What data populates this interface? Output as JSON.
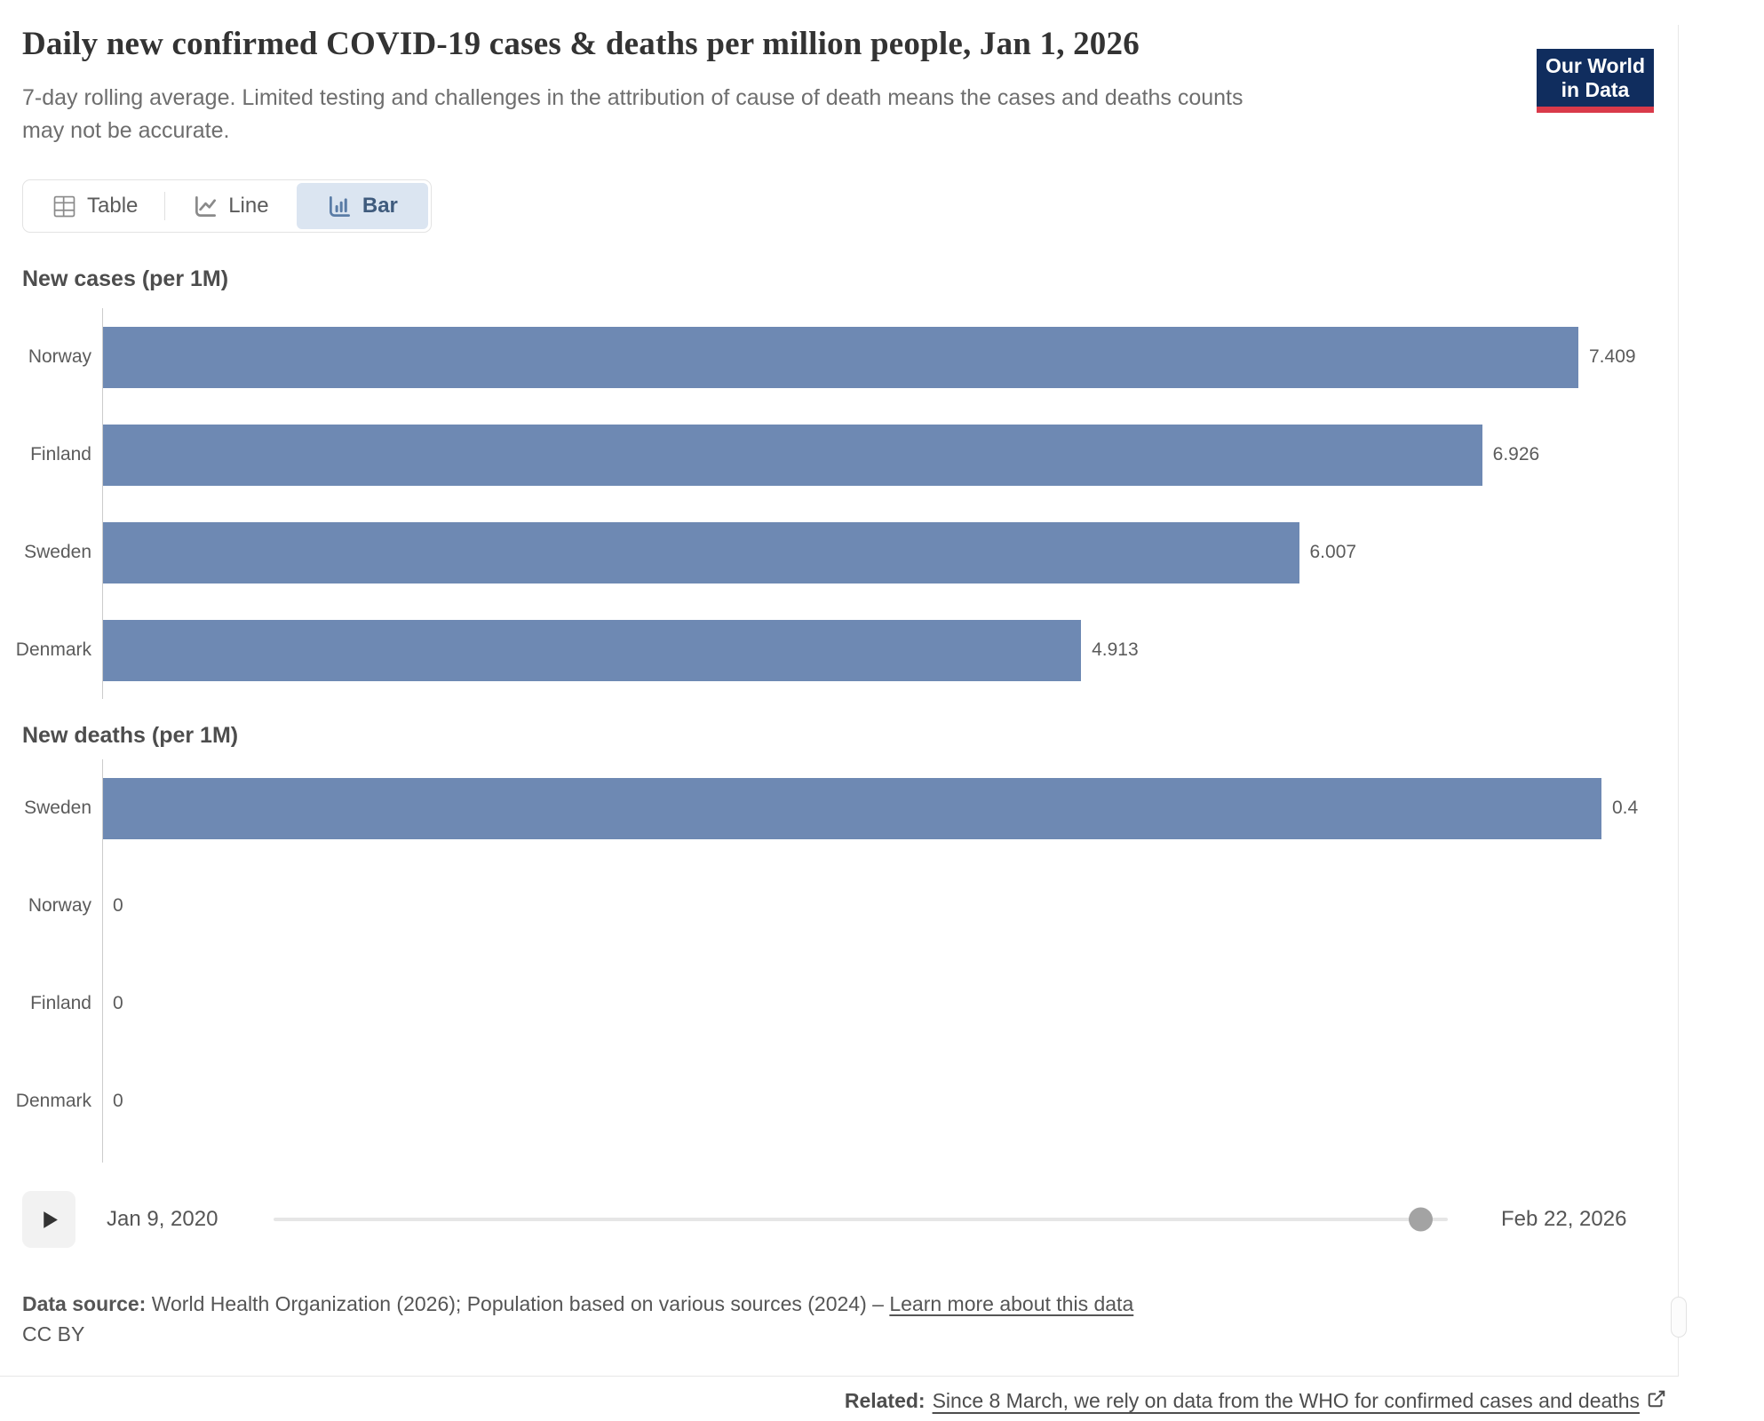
{
  "header": {
    "title": "Daily new confirmed COVID-19 cases & deaths per million people, Jan 1, 2026",
    "subtitle": "7-day rolling average. Limited testing and challenges in the attribution of cause of death means the cases and deaths counts may not be accurate.",
    "logo": {
      "line1": "Our World",
      "line2": "in Data"
    }
  },
  "tabs": [
    {
      "label": "Table",
      "icon": "table-icon",
      "active": false
    },
    {
      "label": "Line",
      "icon": "line-chart-icon",
      "active": false
    },
    {
      "label": "Bar",
      "icon": "bar-chart-icon",
      "active": true
    }
  ],
  "chart_data": [
    {
      "type": "bar",
      "orientation": "horizontal",
      "title": "New cases (per 1M)",
      "categories": [
        "Norway",
        "Finland",
        "Sweden",
        "Denmark"
      ],
      "values": [
        7.409,
        6.926,
        6.007,
        4.913
      ],
      "value_labels": [
        "7.409",
        "6.926",
        "6.007",
        "4.913"
      ],
      "bar_color": "#6e89b3",
      "xlim": [
        0,
        7.409
      ],
      "grid": false,
      "note": "values displayed with dot as thousands separator (cases per million)"
    },
    {
      "type": "bar",
      "orientation": "horizontal",
      "title": "New deaths (per 1M)",
      "categories": [
        "Sweden",
        "Norway",
        "Finland",
        "Denmark"
      ],
      "values": [
        0.4,
        0,
        0,
        0
      ],
      "value_labels": [
        "0.4",
        "0",
        "0",
        "0"
      ],
      "bar_color": "#6e89b3",
      "xlim": [
        0,
        0.4
      ],
      "grid": false
    }
  ],
  "timeline": {
    "start_date": "Jan 9, 2020",
    "end_date": "Feb 22, 2026",
    "current_date": "Jan 1, 2026",
    "handle_position_pct": 97.7,
    "play_icon": "play-icon"
  },
  "footer": {
    "data_source_label": "Data source:",
    "data_source_text": "World Health Organization (2026); Population based on various sources (2024)",
    "separator": "–",
    "learn_more_label": "Learn more about this data",
    "license": "CC BY",
    "related_label": "Related:",
    "related_link": "Since 8 March, we rely on data from the WHO for confirmed cases and deaths",
    "external_link_icon": "external-link-icon"
  },
  "colors": {
    "bar": "#6e89b3",
    "logo_background": "#102d5e",
    "logo_stripe": "#d93a4a",
    "active_tab_background": "#dbe5f1",
    "active_tab_text": "#3f5b7d",
    "text": "#555555"
  }
}
